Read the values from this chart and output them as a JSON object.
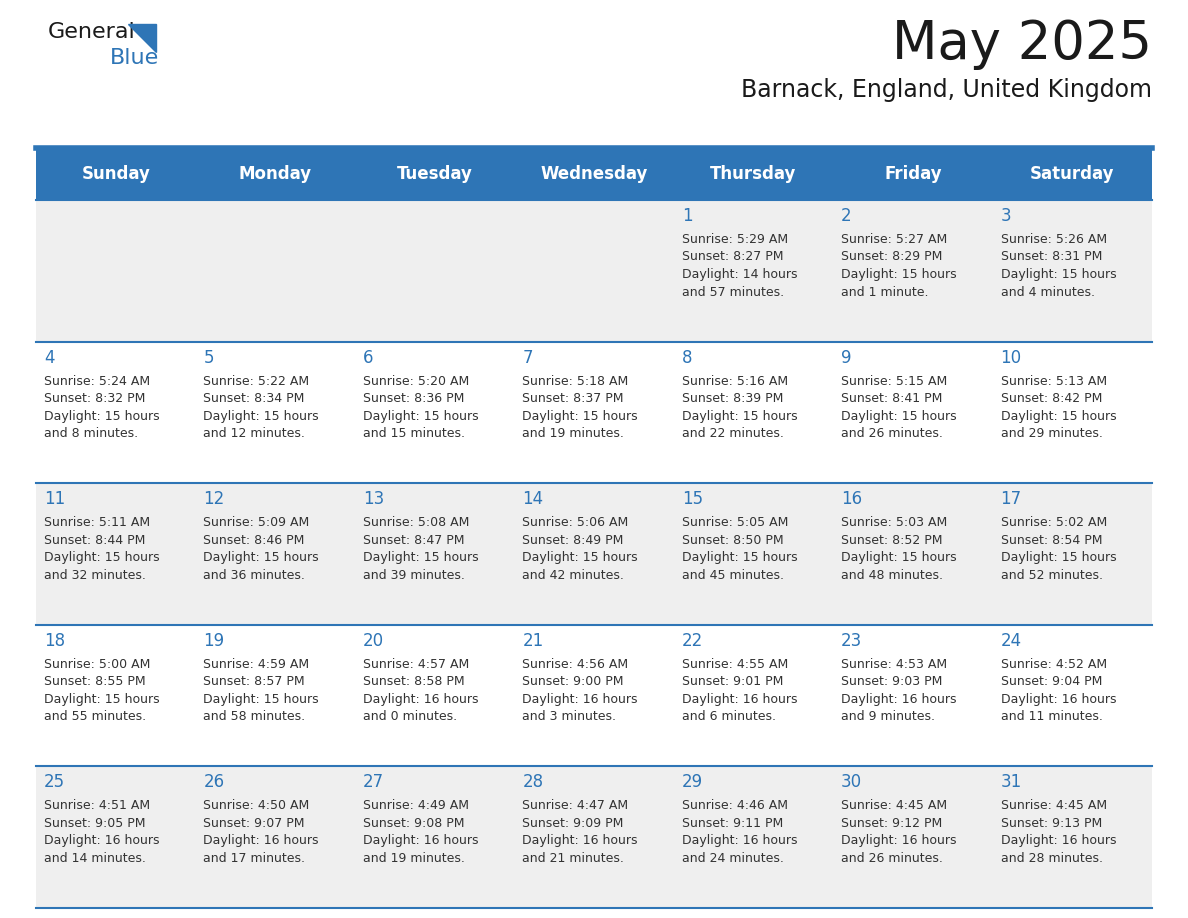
{
  "title": "May 2025",
  "subtitle": "Barnack, England, United Kingdom",
  "header_bg": "#2E75B6",
  "header_text_color": "#FFFFFF",
  "day_names": [
    "Sunday",
    "Monday",
    "Tuesday",
    "Wednesday",
    "Thursday",
    "Friday",
    "Saturday"
  ],
  "row0_bg": "#EFEFEF",
  "row1_bg": "#FFFFFF",
  "row2_bg": "#EFEFEF",
  "row3_bg": "#FFFFFF",
  "row4_bg": "#EFEFEF",
  "title_color": "#1a1a1a",
  "subtitle_color": "#1a1a1a",
  "number_color": "#2E75B6",
  "text_color": "#333333",
  "separator_color": "#2E75B6",
  "days": [
    {
      "day": 1,
      "col": 4,
      "row": 0,
      "sunrise": "5:29 AM",
      "sunset": "8:27 PM",
      "daylight": "14 hours and 57 minutes."
    },
    {
      "day": 2,
      "col": 5,
      "row": 0,
      "sunrise": "5:27 AM",
      "sunset": "8:29 PM",
      "daylight": "15 hours and 1 minute."
    },
    {
      "day": 3,
      "col": 6,
      "row": 0,
      "sunrise": "5:26 AM",
      "sunset": "8:31 PM",
      "daylight": "15 hours and 4 minutes."
    },
    {
      "day": 4,
      "col": 0,
      "row": 1,
      "sunrise": "5:24 AM",
      "sunset": "8:32 PM",
      "daylight": "15 hours and 8 minutes."
    },
    {
      "day": 5,
      "col": 1,
      "row": 1,
      "sunrise": "5:22 AM",
      "sunset": "8:34 PM",
      "daylight": "15 hours and 12 minutes."
    },
    {
      "day": 6,
      "col": 2,
      "row": 1,
      "sunrise": "5:20 AM",
      "sunset": "8:36 PM",
      "daylight": "15 hours and 15 minutes."
    },
    {
      "day": 7,
      "col": 3,
      "row": 1,
      "sunrise": "5:18 AM",
      "sunset": "8:37 PM",
      "daylight": "15 hours and 19 minutes."
    },
    {
      "day": 8,
      "col": 4,
      "row": 1,
      "sunrise": "5:16 AM",
      "sunset": "8:39 PM",
      "daylight": "15 hours and 22 minutes."
    },
    {
      "day": 9,
      "col": 5,
      "row": 1,
      "sunrise": "5:15 AM",
      "sunset": "8:41 PM",
      "daylight": "15 hours and 26 minutes."
    },
    {
      "day": 10,
      "col": 6,
      "row": 1,
      "sunrise": "5:13 AM",
      "sunset": "8:42 PM",
      "daylight": "15 hours and 29 minutes."
    },
    {
      "day": 11,
      "col": 0,
      "row": 2,
      "sunrise": "5:11 AM",
      "sunset": "8:44 PM",
      "daylight": "15 hours and 32 minutes."
    },
    {
      "day": 12,
      "col": 1,
      "row": 2,
      "sunrise": "5:09 AM",
      "sunset": "8:46 PM",
      "daylight": "15 hours and 36 minutes."
    },
    {
      "day": 13,
      "col": 2,
      "row": 2,
      "sunrise": "5:08 AM",
      "sunset": "8:47 PM",
      "daylight": "15 hours and 39 minutes."
    },
    {
      "day": 14,
      "col": 3,
      "row": 2,
      "sunrise": "5:06 AM",
      "sunset": "8:49 PM",
      "daylight": "15 hours and 42 minutes."
    },
    {
      "day": 15,
      "col": 4,
      "row": 2,
      "sunrise": "5:05 AM",
      "sunset": "8:50 PM",
      "daylight": "15 hours and 45 minutes."
    },
    {
      "day": 16,
      "col": 5,
      "row": 2,
      "sunrise": "5:03 AM",
      "sunset": "8:52 PM",
      "daylight": "15 hours and 48 minutes."
    },
    {
      "day": 17,
      "col": 6,
      "row": 2,
      "sunrise": "5:02 AM",
      "sunset": "8:54 PM",
      "daylight": "15 hours and 52 minutes."
    },
    {
      "day": 18,
      "col": 0,
      "row": 3,
      "sunrise": "5:00 AM",
      "sunset": "8:55 PM",
      "daylight": "15 hours and 55 minutes."
    },
    {
      "day": 19,
      "col": 1,
      "row": 3,
      "sunrise": "4:59 AM",
      "sunset": "8:57 PM",
      "daylight": "15 hours and 58 minutes."
    },
    {
      "day": 20,
      "col": 2,
      "row": 3,
      "sunrise": "4:57 AM",
      "sunset": "8:58 PM",
      "daylight": "16 hours and 0 minutes."
    },
    {
      "day": 21,
      "col": 3,
      "row": 3,
      "sunrise": "4:56 AM",
      "sunset": "9:00 PM",
      "daylight": "16 hours and 3 minutes."
    },
    {
      "day": 22,
      "col": 4,
      "row": 3,
      "sunrise": "4:55 AM",
      "sunset": "9:01 PM",
      "daylight": "16 hours and 6 minutes."
    },
    {
      "day": 23,
      "col": 5,
      "row": 3,
      "sunrise": "4:53 AM",
      "sunset": "9:03 PM",
      "daylight": "16 hours and 9 minutes."
    },
    {
      "day": 24,
      "col": 6,
      "row": 3,
      "sunrise": "4:52 AM",
      "sunset": "9:04 PM",
      "daylight": "16 hours and 11 minutes."
    },
    {
      "day": 25,
      "col": 0,
      "row": 4,
      "sunrise": "4:51 AM",
      "sunset": "9:05 PM",
      "daylight": "16 hours and 14 minutes."
    },
    {
      "day": 26,
      "col": 1,
      "row": 4,
      "sunrise": "4:50 AM",
      "sunset": "9:07 PM",
      "daylight": "16 hours and 17 minutes."
    },
    {
      "day": 27,
      "col": 2,
      "row": 4,
      "sunrise": "4:49 AM",
      "sunset": "9:08 PM",
      "daylight": "16 hours and 19 minutes."
    },
    {
      "day": 28,
      "col": 3,
      "row": 4,
      "sunrise": "4:47 AM",
      "sunset": "9:09 PM",
      "daylight": "16 hours and 21 minutes."
    },
    {
      "day": 29,
      "col": 4,
      "row": 4,
      "sunrise": "4:46 AM",
      "sunset": "9:11 PM",
      "daylight": "16 hours and 24 minutes."
    },
    {
      "day": 30,
      "col": 5,
      "row": 4,
      "sunrise": "4:45 AM",
      "sunset": "9:12 PM",
      "daylight": "16 hours and 26 minutes."
    },
    {
      "day": 31,
      "col": 6,
      "row": 4,
      "sunrise": "4:45 AM",
      "sunset": "9:13 PM",
      "daylight": "16 hours and 28 minutes."
    }
  ],
  "logo_text_general": "General",
  "logo_text_blue": "Blue",
  "logo_color_general": "#1a1a1a",
  "logo_color_blue": "#2E75B6",
  "logo_triangle_color": "#2E75B6"
}
